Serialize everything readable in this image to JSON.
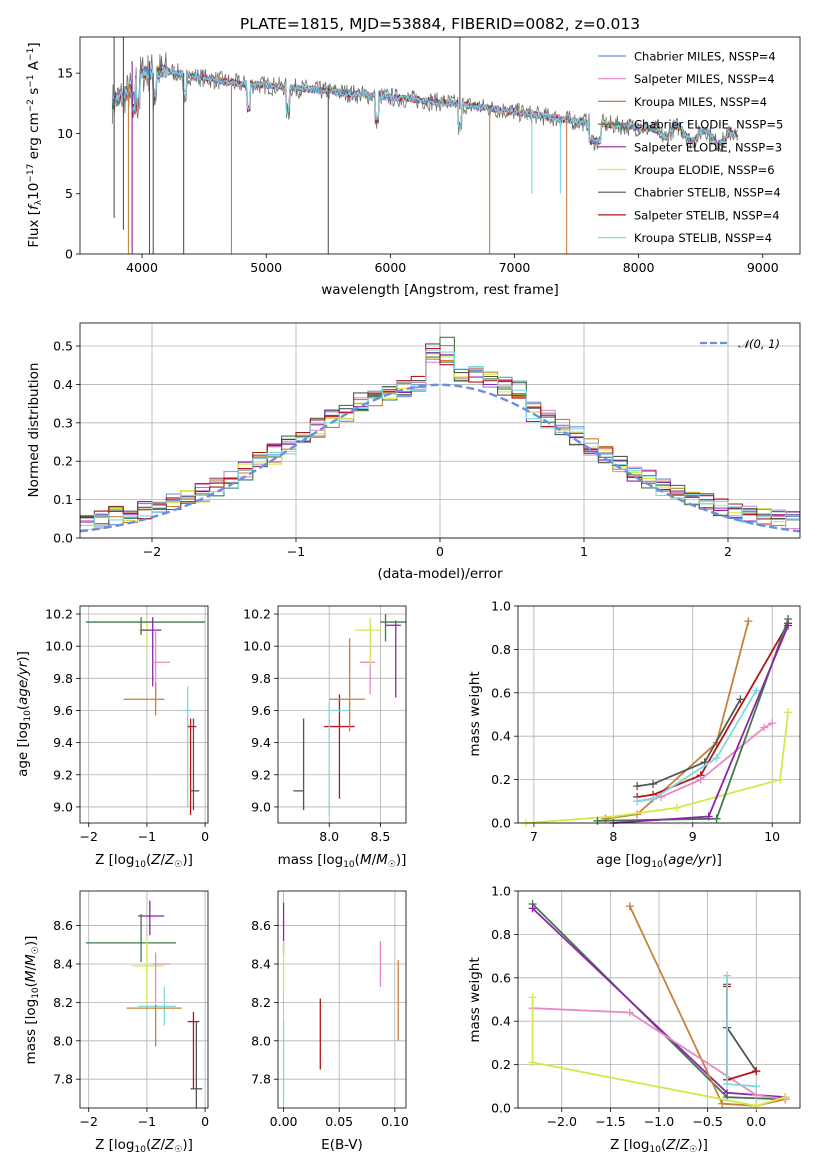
{
  "colors": {
    "chabrier_miles": "#6a8fe0",
    "salpeter_miles": "#e78ac3",
    "kroupa_miles": "#c9813a",
    "chabrier_elodie": "#3f7a4d",
    "salpeter_elodie": "#8e24aa",
    "kroupa_elodie": "#d4e84a",
    "chabrier_stelib": "#555555",
    "salpeter_stelib": "#b01818",
    "kroupa_stelib": "#7fd8e0",
    "orange": "#e07a30",
    "normal": "#6a8fe0"
  },
  "chart_data": [
    {
      "type": "line",
      "title": "PLATE=1815, MJD=53884, FIBERID=0082, z=0.013",
      "xlabel": "wavelength [Angstrom, rest frame]",
      "ylabel": "Flux [fλ10⁻¹⁷ erg cm⁻² s⁻¹ A⁻¹]",
      "xlim": [
        3500,
        9300
      ],
      "ylim": [
        0,
        18
      ],
      "xticks": [
        "4000",
        "5000",
        "6000",
        "7000",
        "8000",
        "9000"
      ],
      "yticks": [
        "0",
        "5",
        "10",
        "15"
      ],
      "legend_position": "top-right",
      "legend": [
        "Chabrier MILES, NSSP=4",
        "Salpeter MILES, NSSP=4",
        "Kroupa MILES, NSSP=4",
        "Chabrier ELODIE, NSSP=5",
        "Salpeter ELODIE, NSSP=3",
        "Kroupa ELODIE, NSSP=6",
        "Chabrier STELIB, NSSP=4",
        "Salpeter STELIB, NSSP=4",
        "Kroupa STELIB, NSSP=4"
      ],
      "spectrum_envelope": {
        "x": [
          3750,
          3900,
          4000,
          4200,
          4500,
          4800,
          5000,
          5500,
          6000,
          6500,
          7000,
          7500,
          8000,
          8500,
          8800
        ],
        "y": [
          12.5,
          13.5,
          15.0,
          15.2,
          14.6,
          14.1,
          14.0,
          13.5,
          13.0,
          12.5,
          11.8,
          11.0,
          10.5,
          9.8,
          9.5
        ]
      }
    },
    {
      "type": "line",
      "xlabel": "(data-model)/error",
      "ylabel": "Normed distribution",
      "xlim": [
        -2.5,
        2.5
      ],
      "ylim": [
        0,
        0.56
      ],
      "xticks": [
        "−2",
        "−1",
        "0",
        "1",
        "2"
      ],
      "yticks": [
        "0.0",
        "0.1",
        "0.2",
        "0.3",
        "0.4",
        "0.5"
      ],
      "legend": [
        "𝒩(0, 1)"
      ],
      "legend_position": "top-right",
      "normal_curve": {
        "mean": 0,
        "sigma": 1
      }
    },
    {
      "type": "scatter",
      "xlabel": "Z [log₁₀(Z/Z☉)]",
      "ylabel": "age  [log₁₀(age/yr)]",
      "xlim": [
        -2.15,
        0.05
      ],
      "ylim": [
        8.9,
        10.25
      ],
      "xticks": [
        "−2",
        "−1",
        "0"
      ],
      "yticks": [
        "9.0",
        "9.2",
        "9.4",
        "9.6",
        "9.8",
        "10.0",
        "10.2"
      ],
      "points": [
        {
          "series": "Kroupa ELODIE",
          "x": -1.0,
          "y": 10.1
        },
        {
          "series": "Chabrier ELODIE",
          "x": -1.1,
          "y": 10.15
        },
        {
          "series": "Salpeter ELODIE",
          "x": -0.9,
          "y": 10.1
        },
        {
          "series": "Salpeter MILES",
          "x": -0.85,
          "y": 9.9
        },
        {
          "series": "Kroupa MILES",
          "x": -0.85,
          "y": 9.67
        },
        {
          "series": "Kroupa STELIB",
          "x": -0.3,
          "y": 9.6
        },
        {
          "series": "Salpeter STELIB",
          "x": -0.25,
          "y": 9.5
        },
        {
          "series": "Chabrier STELIB",
          "x": -0.2,
          "y": 9.1
        }
      ]
    },
    {
      "type": "scatter",
      "xlabel": "mass [log₁₀(M/M☉)]",
      "xlim": [
        7.5,
        8.75
      ],
      "ylim": [
        8.9,
        10.25
      ],
      "xticks": [
        "8.0",
        "8.5"
      ],
      "yticks": [
        "9.0",
        "9.2",
        "9.4",
        "9.6",
        "9.8",
        "10.0",
        "10.2"
      ],
      "points": [
        {
          "series": "Chabrier STELIB",
          "x": 7.75,
          "y": 9.1
        },
        {
          "series": "Salpeter STELIB",
          "x": 8.1,
          "y": 9.5
        },
        {
          "series": "Kroupa STELIB",
          "x": 8.0,
          "y": 9.6
        },
        {
          "series": "Kroupa MILES",
          "x": 8.2,
          "y": 9.67
        },
        {
          "series": "Salpeter MILES",
          "x": 8.4,
          "y": 9.9
        },
        {
          "series": "Kroupa ELODIE",
          "x": 8.4,
          "y": 10.1
        },
        {
          "series": "Salpeter ELODIE",
          "x": 8.65,
          "y": 10.13
        },
        {
          "series": "Chabrier ELODIE",
          "x": 8.55,
          "y": 10.15
        }
      ]
    },
    {
      "type": "line",
      "xlabel": "age  [log₁₀(age/yr)]",
      "ylabel": "mass weight",
      "xlim": [
        6.8,
        10.35
      ],
      "ylim": [
        0,
        1
      ],
      "xticks": [
        "7",
        "8",
        "9",
        "10"
      ],
      "yticks": [
        "0.0",
        "0.2",
        "0.4",
        "0.6",
        "0.8",
        "1.0"
      ],
      "series": [
        {
          "name": "Kroupa MILES",
          "x": [
            7.9,
            8.3,
            9.3,
            9.7
          ],
          "y": [
            0.02,
            0.04,
            0.37,
            0.93
          ]
        },
        {
          "name": "Chabrier STELIB",
          "x": [
            8.3,
            8.5,
            9.15,
            9.6
          ],
          "y": [
            0.17,
            0.18,
            0.28,
            0.57
          ]
        },
        {
          "name": "Salpeter STELIB",
          "x": [
            8.3,
            8.5,
            9.1,
            10.2
          ],
          "y": [
            0.12,
            0.13,
            0.22,
            0.92
          ]
        },
        {
          "name": "Salpeter MILES",
          "x": [
            8.3,
            8.6,
            9.1,
            9.9,
            10.0
          ],
          "y": [
            0.1,
            0.12,
            0.2,
            0.44,
            0.46
          ]
        },
        {
          "name": "Kroupa ELODIE",
          "x": [
            6.9,
            8.0,
            8.8,
            10.1,
            10.2
          ],
          "y": [
            0.0,
            0.03,
            0.07,
            0.2,
            0.51
          ]
        },
        {
          "name": "Chabrier ELODIE",
          "x": [
            7.8,
            9.3,
            10.2
          ],
          "y": [
            0.01,
            0.02,
            0.94
          ]
        },
        {
          "name": "Salpeter ELODIE",
          "x": [
            8.0,
            9.2,
            10.2
          ],
          "y": [
            0.0,
            0.03,
            0.91
          ]
        },
        {
          "name": "Kroupa STELIB",
          "x": [
            8.3,
            8.5,
            9.3,
            9.8
          ],
          "y": [
            0.1,
            0.11,
            0.3,
            0.61
          ]
        }
      ]
    },
    {
      "type": "scatter",
      "xlabel": "Z [log₁₀(Z/Z☉)]",
      "ylabel": "mass [log₁₀(M/M☉)]",
      "xlim": [
        -2.15,
        0.05
      ],
      "ylim": [
        7.65,
        8.78
      ],
      "xticks": [
        "−2",
        "−1",
        "0"
      ],
      "yticks": [
        "7.8",
        "8.0",
        "8.2",
        "8.4",
        "8.6"
      ],
      "points": [
        {
          "series": "Salpeter ELODIE",
          "x": -0.95,
          "y": 8.65
        },
        {
          "series": "Chabrier ELODIE",
          "x": -1.1,
          "y": 8.51
        },
        {
          "series": "Kroupa ELODIE",
          "x": -1.0,
          "y": 8.39
        },
        {
          "series": "Salpeter MILES",
          "x": -0.85,
          "y": 8.4
        },
        {
          "series": "Kroupa STELIB",
          "x": -0.7,
          "y": 8.18
        },
        {
          "series": "Kroupa MILES",
          "x": -0.85,
          "y": 8.17
        },
        {
          "series": "Salpeter STELIB",
          "x": -0.2,
          "y": 8.1
        },
        {
          "series": "Chabrier STELIB",
          "x": -0.15,
          "y": 7.75
        }
      ]
    },
    {
      "type": "scatter",
      "xlabel": "E(B-V)",
      "xlim": [
        -0.005,
        0.11
      ],
      "ylim": [
        7.65,
        8.78
      ],
      "xticks": [
        "0.00",
        "0.05",
        "0.10"
      ],
      "yticks": [
        "7.8",
        "8.0",
        "8.2",
        "8.4",
        "8.6"
      ],
      "points": [
        {
          "series": "Salpeter ELODIE",
          "x": 0.0,
          "y": 8.6
        },
        {
          "series": "Kroupa ELODIE",
          "x": 0.0,
          "y": 8.4
        },
        {
          "series": "Kroupa STELIB",
          "x": 0.0,
          "y": 8.0
        },
        {
          "series": "Salpeter STELIB",
          "x": 0.033,
          "y": 8.03
        },
        {
          "series": "Salpeter MILES",
          "x": 0.087,
          "y": 8.4
        },
        {
          "series": "Kroupa MILES",
          "x": 0.103,
          "y": 8.15
        }
      ]
    },
    {
      "type": "line",
      "xlabel": "Z [log₁₀(Z/Z☉)]",
      "ylabel": "mass weight",
      "xlim": [
        -2.45,
        0.45
      ],
      "ylim": [
        0,
        1
      ],
      "xticks": [
        "−2.0",
        "−1.5",
        "−1.0",
        "−0.5",
        "0.0"
      ],
      "yticks": [
        "0.0",
        "0.2",
        "0.4",
        "0.6",
        "0.8",
        "1.0"
      ],
      "series": [
        {
          "name": "Chabrier ELODIE",
          "x": [
            -2.3,
            -0.3,
            0.3
          ],
          "y": [
            0.94,
            0.05,
            0.04
          ]
        },
        {
          "name": "Salpeter ELODIE",
          "x": [
            -2.3,
            -0.3,
            0.3
          ],
          "y": [
            0.92,
            0.07,
            0.05
          ]
        },
        {
          "name": "Kroupa MILES",
          "x": [
            -1.3,
            -0.35,
            0.0,
            0.3
          ],
          "y": [
            0.93,
            0.02,
            0.01,
            0.04
          ]
        },
        {
          "name": "Salpeter MILES",
          "x": [
            -2.3,
            -1.3,
            0.0,
            0.3
          ],
          "y": [
            0.46,
            0.44,
            0.06,
            0.04
          ]
        },
        {
          "name": "Kroupa ELODIE",
          "x": [
            -2.3,
            -2.3,
            0.0,
            0.3
          ],
          "y": [
            0.51,
            0.21,
            0.01,
            0.05
          ]
        },
        {
          "name": "Chabrier STELIB",
          "x": [
            -0.3,
            -0.3,
            0.0
          ],
          "y": [
            0.57,
            0.37,
            0.17
          ]
        },
        {
          "name": "Salpeter STELIB",
          "x": [
            -0.3,
            -0.3,
            0.0
          ],
          "y": [
            0.56,
            0.13,
            0.17
          ]
        },
        {
          "name": "Kroupa STELIB",
          "x": [
            -0.3,
            -0.3,
            0.0
          ],
          "y": [
            0.61,
            0.11,
            0.1
          ]
        }
      ]
    }
  ]
}
